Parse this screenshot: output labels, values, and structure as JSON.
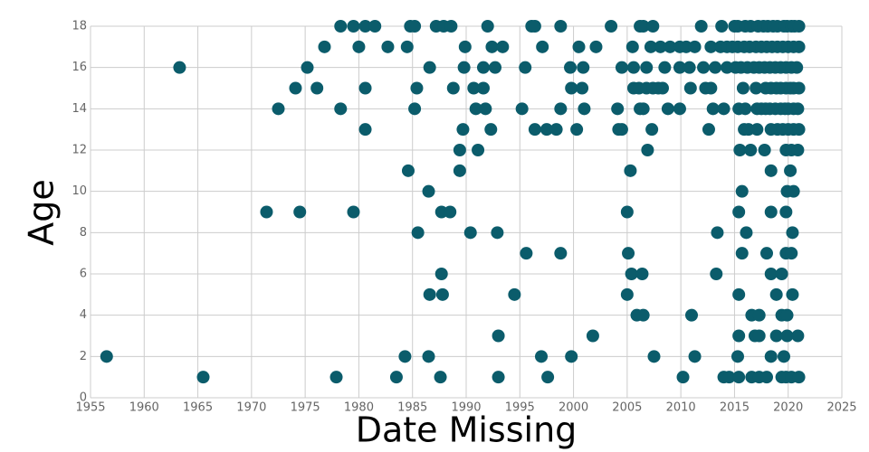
{
  "chart_data": {
    "type": "scatter",
    "x_label": "Date Missing",
    "y_label": "Age",
    "color": "#0b5c6b",
    "grid": true,
    "xlim": [
      1955,
      2025
    ],
    "xticks": [
      1955,
      1960,
      1965,
      1970,
      1975,
      1980,
      1985,
      1990,
      1995,
      2000,
      2005,
      2010,
      2015,
      2020,
      2025
    ],
    "ylim": [
      0,
      18
    ],
    "yticks": [
      0,
      2,
      4,
      6,
      8,
      10,
      12,
      14,
      16,
      18
    ],
    "x": [
      1978.3,
      1979.5,
      1980.6,
      1981.5,
      1984.8,
      1985.2,
      1987.2,
      1987.9,
      1988.6,
      1992.0,
      1996.1,
      1996.4,
      1998.8,
      2003.5,
      2006.2,
      2006.5,
      2007.4,
      2011.9,
      2013.8,
      2015.0,
      2015.3,
      2016.0,
      2016.5,
      2017.2,
      2017.7,
      2018.1,
      2018.6,
      2019.0,
      2019.6,
      2019.9,
      2020.3,
      2020.6,
      2021.0,
      1976.8,
      1980.0,
      1982.7,
      1984.5,
      1989.9,
      1992.4,
      1993.4,
      1997.1,
      2000.5,
      2002.1,
      2005.5,
      2007.2,
      2008.1,
      2009.0,
      2009.9,
      2010.5,
      2011.3,
      2012.8,
      2013.7,
      2014.3,
      2014.8,
      2015.3,
      2015.9,
      2016.4,
      2017.0,
      2017.5,
      2018.0,
      2018.5,
      2019.0,
      2019.5,
      2020.0,
      2020.5,
      2021.0,
      1963.3,
      1975.2,
      1986.6,
      1989.8,
      1991.6,
      1992.7,
      1995.5,
      1999.7,
      2000.9,
      2004.5,
      2005.6,
      2006.8,
      2008.5,
      2009.9,
      2010.8,
      2012.1,
      2013.2,
      2014.3,
      2015.1,
      2015.6,
      2016.2,
      2016.8,
      2017.3,
      2017.8,
      2018.3,
      2018.8,
      2019.3,
      2019.8,
      2020.3,
      2020.8,
      1974.1,
      1976.1,
      1980.6,
      1985.4,
      1988.8,
      1990.7,
      1991.6,
      1999.8,
      2000.8,
      2005.6,
      2006.1,
      2006.8,
      2007.4,
      2007.9,
      2008.3,
      2010.9,
      2012.3,
      2012.8,
      2015.8,
      2017.0,
      2017.9,
      2018.4,
      2018.9,
      2019.3,
      2019.8,
      2020.2,
      2020.5,
      2021.0,
      1972.5,
      1978.3,
      1985.2,
      1990.9,
      1991.8,
      1995.2,
      1998.8,
      2001.0,
      2004.1,
      2006.2,
      2006.5,
      2008.8,
      2009.9,
      2013.0,
      2014.0,
      2015.4,
      2016.0,
      2017.1,
      2017.5,
      2017.9,
      2018.3,
      2018.8,
      2019.3,
      2019.7,
      2020.0,
      2020.5,
      2020.9,
      1980.6,
      1989.7,
      1992.3,
      1996.4,
      1997.5,
      1998.4,
      2000.3,
      2004.2,
      2004.5,
      2007.3,
      2012.6,
      2015.9,
      2016.3,
      2017.1,
      2018.4,
      2019.0,
      2019.5,
      2020.0,
      2020.5,
      2021.0,
      1989.4,
      1991.1,
      2006.9,
      2015.5,
      2016.5,
      2017.8,
      2019.8,
      2020.3,
      2020.9,
      1984.6,
      1989.4,
      2005.3,
      2018.4,
      2020.2,
      1986.5,
      2015.7,
      2019.9,
      2020.5,
      1971.4,
      1974.5,
      1979.5,
      1987.7,
      1988.5,
      2005.0,
      2015.4,
      2018.4,
      2019.8,
      1985.5,
      1990.4,
      1992.9,
      2013.4,
      2016.1,
      2020.4,
      1995.6,
      1998.8,
      2005.1,
      2015.7,
      2018.0,
      2019.8,
      2020.3,
      1987.7,
      2005.4,
      2006.4,
      2013.3,
      2018.4,
      2019.4,
      1986.6,
      1987.8,
      1994.5,
      2005.0,
      2015.4,
      2018.9,
      2020.4,
      2005.9,
      2006.5,
      2011.0,
      2016.6,
      2017.3,
      2019.4,
      2019.9,
      1993.0,
      2001.8,
      2015.4,
      2016.9,
      2017.3,
      2018.9,
      2019.9,
      2020.9,
      1956.5,
      1984.3,
      1986.5,
      1997.0,
      1999.8,
      2007.5,
      2011.3,
      2015.3,
      2018.4,
      2019.6,
      1965.5,
      1977.9,
      1983.5,
      1987.6,
      1993.0,
      1997.6,
      2010.2,
      2014.0,
      2014.5,
      2015.4,
      2016.6,
      2017.3,
      2018.0,
      2019.4,
      2019.8,
      2020.3,
      2021.0
    ],
    "values": [
      18,
      18,
      18,
      18,
      18,
      18,
      18,
      18,
      18,
      18,
      18,
      18,
      18,
      18,
      18,
      18,
      18,
      18,
      18,
      18,
      18,
      18,
      18,
      18,
      18,
      18,
      18,
      18,
      18,
      18,
      18,
      18,
      18,
      17,
      17,
      17,
      17,
      17,
      17,
      17,
      17,
      17,
      17,
      17,
      17,
      17,
      17,
      17,
      17,
      17,
      17,
      17,
      17,
      17,
      17,
      17,
      17,
      17,
      17,
      17,
      17,
      17,
      17,
      17,
      17,
      17,
      16,
      16,
      16,
      16,
      16,
      16,
      16,
      16,
      16,
      16,
      16,
      16,
      16,
      16,
      16,
      16,
      16,
      16,
      16,
      16,
      16,
      16,
      16,
      16,
      16,
      16,
      16,
      16,
      16,
      16,
      15,
      15,
      15,
      15,
      15,
      15,
      15,
      15,
      15,
      15,
      15,
      15,
      15,
      15,
      15,
      15,
      15,
      15,
      15,
      15,
      15,
      15,
      15,
      15,
      15,
      15,
      15,
      15,
      14,
      14,
      14,
      14,
      14,
      14,
      14,
      14,
      14,
      14,
      14,
      14,
      14,
      14,
      14,
      14,
      14,
      14,
      14,
      14,
      14,
      14,
      14,
      14,
      14,
      14,
      14,
      13,
      13,
      13,
      13,
      13,
      13,
      13,
      13,
      13,
      13,
      13,
      13,
      13,
      13,
      13,
      13,
      13,
      13,
      13,
      13,
      12,
      12,
      12,
      12,
      12,
      12,
      12,
      12,
      12,
      11,
      11,
      11,
      11,
      11,
      10,
      10,
      10,
      10,
      9,
      9,
      9,
      9,
      9,
      9,
      9,
      9,
      9,
      8,
      8,
      8,
      8,
      8,
      8,
      7,
      7,
      7,
      7,
      7,
      7,
      7,
      6,
      6,
      6,
      6,
      6,
      6,
      5,
      5,
      5,
      5,
      5,
      5,
      5,
      4,
      4,
      4,
      4,
      4,
      4,
      4,
      3,
      3,
      3,
      3,
      3,
      3,
      3,
      3,
      2,
      2,
      2,
      2,
      2,
      2,
      2,
      2,
      2,
      2,
      1,
      1,
      1,
      1,
      1,
      1,
      1,
      1,
      1,
      1,
      1,
      1,
      1,
      1,
      1,
      1,
      1
    ]
  }
}
